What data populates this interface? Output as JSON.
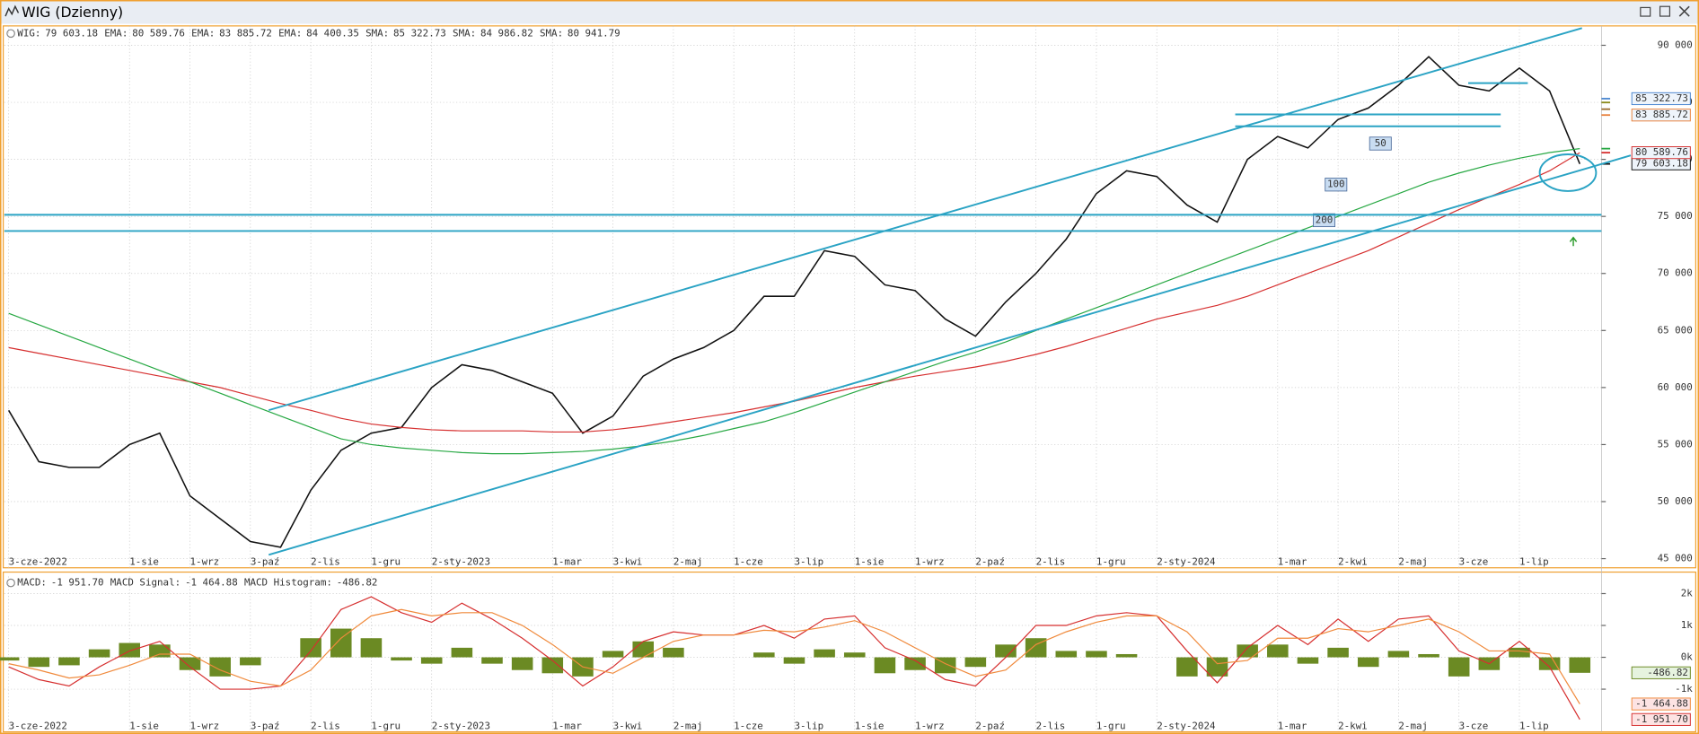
{
  "title": "WIG (Dzienny)",
  "chart_data": [
    {
      "type": "line",
      "categories": [
        "3-cze-2022",
        null,
        null,
        null,
        "1-sie",
        null,
        "1-wrz",
        null,
        "3-paź",
        null,
        "2-lis",
        null,
        "1-gru",
        null,
        "2-sty-2023",
        null,
        null,
        null,
        "1-mar",
        null,
        "3-kwi",
        null,
        "2-maj",
        null,
        "1-cze",
        null,
        "3-lip",
        null,
        "1-sie",
        null,
        "1-wrz",
        null,
        "2-paź",
        null,
        "2-lis",
        null,
        "1-gru",
        null,
        "2-sty-2024",
        null,
        null,
        null,
        "1-mar",
        null,
        "2-kwi",
        null,
        "2-maj",
        null,
        "3-cze",
        null,
        "1-lip",
        null,
        null
      ],
      "series": [
        {
          "color": "#111111",
          "values": [
            58000,
            53500,
            53000,
            53000,
            55000,
            56000,
            50500,
            48500,
            46500,
            46000,
            51000,
            54500,
            56000,
            56500,
            60000,
            62000,
            61500,
            60500,
            59500,
            56000,
            57500,
            61000,
            62500,
            63500,
            65000,
            68000,
            68000,
            72000,
            71500,
            69000,
            68500,
            66000,
            64500,
            67500,
            70000,
            73000,
            77000,
            79000,
            78500,
            76000,
            74500,
            80000,
            82000,
            81000,
            83500,
            84500,
            86500,
            89000,
            86500,
            86000,
            88000,
            86000,
            79603.18
          ]
        },
        {
          "color": "#d62f2f",
          "values": [
            63500,
            63000,
            62500,
            62000,
            61500,
            61000,
            60500,
            60000,
            59300,
            58600,
            58000,
            57300,
            56800,
            56500,
            56300,
            56200,
            56200,
            56200,
            56100,
            56100,
            56300,
            56600,
            57000,
            57400,
            57800,
            58300,
            58800,
            59400,
            60000,
            60500,
            61000,
            61400,
            61800,
            62300,
            62900,
            63600,
            64400,
            65200,
            66000,
            66600,
            67200,
            68000,
            69000,
            70000,
            71000,
            72000,
            73200,
            74400,
            75600,
            76700,
            77800,
            79000,
            80589.76
          ]
        },
        {
          "color": "#27a843",
          "values": [
            66500,
            65500,
            64500,
            63500,
            62500,
            61500,
            60500,
            59500,
            58500,
            57500,
            56500,
            55500,
            55000,
            54700,
            54500,
            54300,
            54200,
            54200,
            54300,
            54400,
            54600,
            54900,
            55300,
            55800,
            56400,
            57000,
            57800,
            58700,
            59600,
            60500,
            61400,
            62300,
            63100,
            64000,
            65000,
            66000,
            67000,
            68000,
            69000,
            70000,
            71000,
            72000,
            73000,
            74000,
            75000,
            76000,
            77000,
            78000,
            78800,
            79500,
            80100,
            80600,
            80941.79
          ]
        }
      ],
      "legend": [
        {
          "name": "WIG:",
          "value": 79603.18,
          "label": "79 603.18",
          "color": "#111111",
          "tag": true
        },
        {
          "name": "EMA:",
          "value": 80589.76,
          "label": "80 589.76",
          "color": "#d62f2f",
          "tag": true
        },
        {
          "name": "EMA:",
          "value": 83885.72,
          "label": "83 885.72",
          "color": "#e8803a",
          "tag": true
        },
        {
          "name": "EMA:",
          "value": 84400.35,
          "label": "84 400.35",
          "color": "#9a6a2e",
          "tag": false
        },
        {
          "name": "SMA:",
          "value": 85322.73,
          "label": "85 322.73",
          "color": "#4a86d0",
          "tag": true
        },
        {
          "name": "SMA:",
          "value": 84986.82,
          "label": "84 986.82",
          "color": "#8a8a1a",
          "tag": false
        },
        {
          "name": "SMA:",
          "value": 80941.79,
          "label": "80 941.79",
          "color": "#27a843",
          "tag": false
        }
      ],
      "annotations": [
        "50",
        "100",
        "200"
      ],
      "ylim": [
        44200,
        91700
      ],
      "yticks": [
        {
          "value": 45000,
          "label": "45 000"
        },
        {
          "value": 50000,
          "label": "50 000"
        },
        {
          "value": 55000,
          "label": "55 000"
        },
        {
          "value": 60000,
          "label": "60 000"
        },
        {
          "value": 65000,
          "label": "65 000"
        },
        {
          "value": 70000,
          "label": "70 000"
        },
        {
          "value": 75000,
          "label": "75 000"
        },
        {
          "value": 80000,
          "label": "80 000"
        },
        {
          "value": 85000,
          "label": "85 000"
        },
        {
          "value": 90000,
          "label": "90 000"
        }
      ],
      "grid": true
    },
    {
      "type": "macd",
      "series": [
        {
          "color": "#d62f2f",
          "values": [
            -300,
            -700,
            -900,
            -300,
            200,
            500,
            -300,
            -1000,
            -1000,
            -900,
            200,
            1500,
            1900,
            1400,
            1100,
            1700,
            1200,
            600,
            -100,
            -900,
            -300,
            500,
            800,
            700,
            700,
            1000,
            600,
            1200,
            1300,
            300,
            -100,
            -700,
            -900,
            0,
            1000,
            1000,
            1300,
            1400,
            1300,
            200,
            -800,
            300,
            1000,
            400,
            1200,
            500,
            1200,
            1300,
            200,
            -200,
            500,
            -300,
            -1951.7
          ]
        },
        {
          "color": "#f08a3c",
          "values": [
            -200,
            -400,
            -650,
            -550,
            -250,
            100,
            100,
            -400,
            -750,
            -900,
            -400,
            600,
            1300,
            1500,
            1300,
            1400,
            1400,
            1000,
            400,
            -300,
            -500,
            0,
            500,
            700,
            700,
            850,
            800,
            950,
            1150,
            800,
            300,
            -200,
            -600,
            -400,
            400,
            800,
            1100,
            1300,
            1300,
            800,
            -200,
            -100,
            600,
            600,
            900,
            800,
            1000,
            1200,
            800,
            200,
            200,
            100,
            -1464.88
          ]
        },
        {
          "color": "#6b8a23",
          "values": [
            -100,
            -300,
            -250,
            250,
            450,
            400,
            -400,
            -600,
            -250,
            0,
            600,
            900,
            600,
            -100,
            -200,
            300,
            -200,
            -400,
            -500,
            -600,
            200,
            500,
            300,
            0,
            0,
            150,
            -200,
            250,
            150,
            -500,
            -400,
            -500,
            -300,
            400,
            600,
            200,
            200,
            100,
            0,
            -600,
            -600,
            400,
            400,
            -200,
            300,
            -300,
            200,
            100,
            -600,
            -400,
            300,
            -400,
            -486.82
          ]
        }
      ],
      "legend": [
        {
          "name": "MACD:",
          "label": "-1 951.70",
          "color": "#d62f2f"
        },
        {
          "name": "MACD Signal:",
          "label": "-1 464.88",
          "color": "#f08a3c"
        },
        {
          "name": "MACD Histogram:",
          "label": "-486.82",
          "color": "#6b8a23"
        }
      ],
      "ylim": [
        -2000,
        2200
      ],
      "yticks": [
        {
          "value": 2000,
          "label": "2k"
        },
        {
          "value": 1000,
          "label": "1k"
        },
        {
          "value": 0,
          "label": "0k"
        },
        {
          "value": -1000,
          "label": "-1k"
        }
      ],
      "grid": true
    }
  ]
}
